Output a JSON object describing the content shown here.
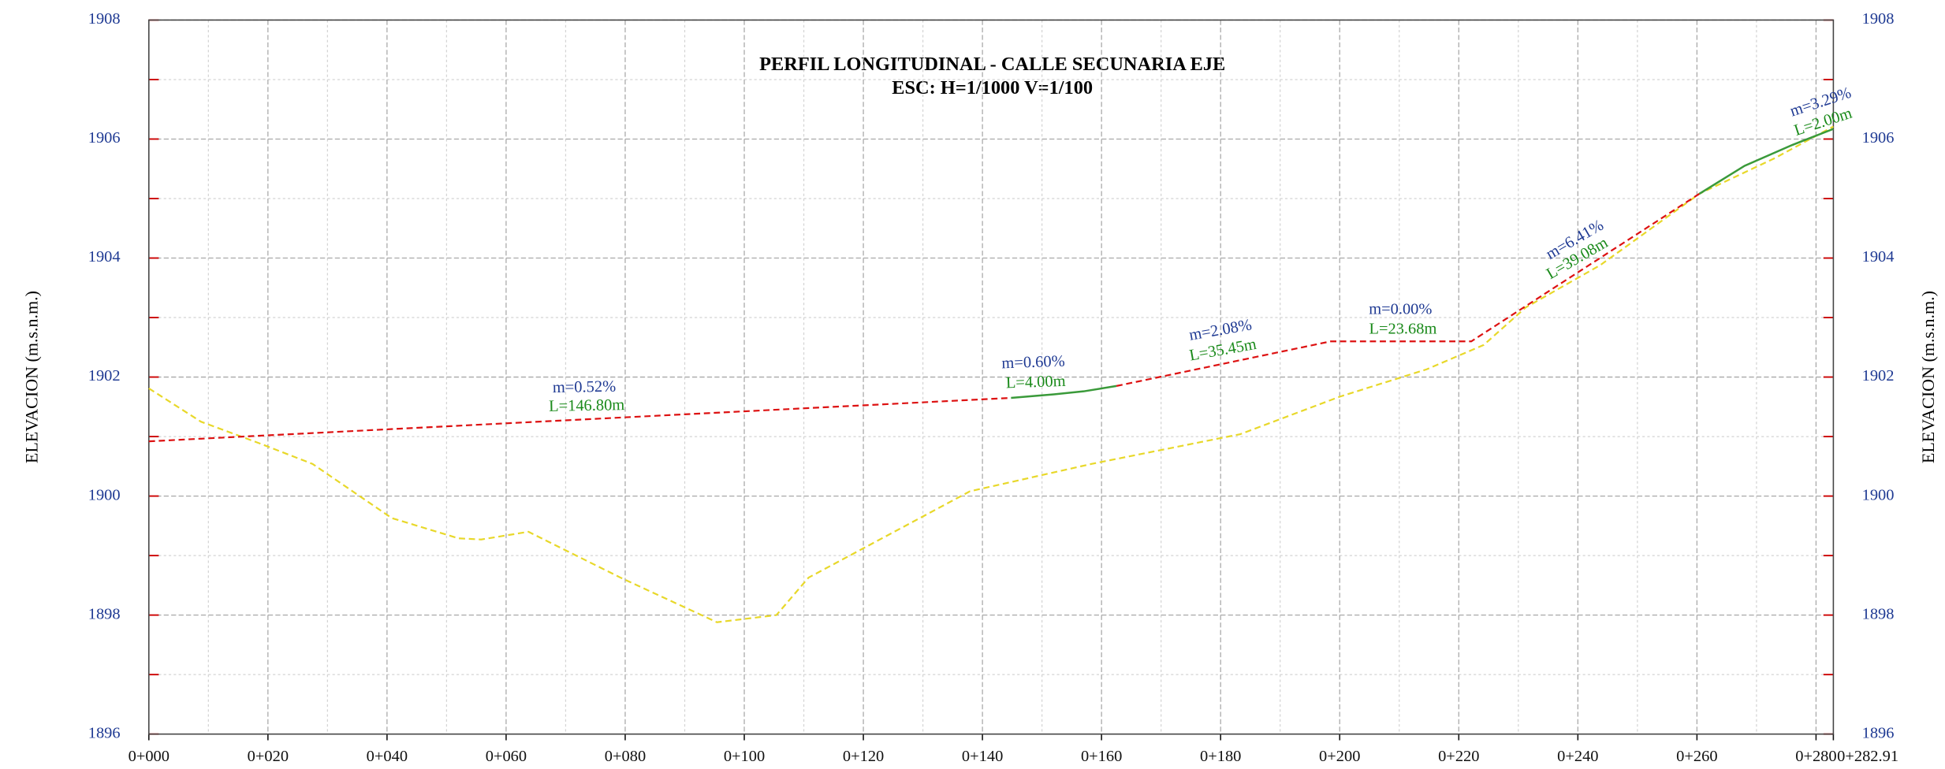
{
  "chart_data": {
    "type": "line",
    "title": "PERFIL LONGITUDINAL - CALLE SECUNARIA EJE",
    "subtitle": "ESC: H=1/1000 V=1/100",
    "y_label": "ELEVACION (m.s.n.m.)",
    "xlim": [
      0,
      282.91
    ],
    "ylim": [
      1896,
      1908
    ],
    "xticks": [
      {
        "value": 0,
        "label": "0+000"
      },
      {
        "value": 20,
        "label": "0+020"
      },
      {
        "value": 40,
        "label": "0+040"
      },
      {
        "value": 60,
        "label": "0+060"
      },
      {
        "value": 80,
        "label": "0+080"
      },
      {
        "value": 100,
        "label": "0+100"
      },
      {
        "value": 120,
        "label": "0+120"
      },
      {
        "value": 140,
        "label": "0+140"
      },
      {
        "value": 160,
        "label": "0+160"
      },
      {
        "value": 180,
        "label": "0+180"
      },
      {
        "value": 200,
        "label": "0+200"
      },
      {
        "value": 220,
        "label": "0+220"
      },
      {
        "value": 240,
        "label": "0+240"
      },
      {
        "value": 260,
        "label": "0+260"
      },
      {
        "value": 280,
        "label": "0+280"
      },
      {
        "value": 282.91,
        "label": "0+282.91"
      }
    ],
    "yticks": [
      1896,
      1898,
      1900,
      1902,
      1904,
      1906,
      1908
    ],
    "xticks_minor": [
      10,
      30,
      50,
      70,
      90,
      110,
      130,
      150,
      170,
      190,
      210,
      230,
      250,
      270
    ],
    "yticks_minor": [
      1897,
      1899,
      1901,
      1903,
      1905,
      1907
    ],
    "grid": true,
    "series": [
      {
        "color": "#e8d82a",
        "dash": true,
        "x": [
          0,
          8.75,
          18.75,
          27.5,
          40.8,
          52,
          55.8,
          63.75,
          79.2,
          95.4,
          105.4,
          110.8,
          137.9,
          158.3,
          183.3,
          200,
          214.6,
          224.2,
          231.25,
          243.75,
          260.4,
          272.9,
          282.91
        ],
        "values": [
          1901.81,
          1901.25,
          1900.88,
          1900.54,
          1899.63,
          1899.29,
          1899.27,
          1899.4,
          1898.63,
          1897.88,
          1898.0,
          1898.63,
          1900.08,
          1900.54,
          1901.04,
          1901.67,
          1902.13,
          1902.54,
          1903.17,
          1903.88,
          1905.08,
          1905.67,
          1906.21
        ]
      },
      {
        "color": "#dd1111",
        "dash": true,
        "x": [
          0,
          144.8,
          null,
          162.5,
          198.5,
          222.1,
          260.4
        ],
        "values": [
          1900.92,
          1901.65,
          null,
          1901.85,
          1902.6,
          1902.6,
          1905.08
        ]
      },
      {
        "color": "#3a9a3a",
        "dash": false,
        "x": [
          144.8,
          152,
          157,
          162.5,
          null,
          260.4,
          268,
          276,
          282.91
        ],
        "values": [
          1901.65,
          1901.71,
          1901.76,
          1901.85,
          null,
          1905.08,
          1905.55,
          1905.9,
          1906.17
        ]
      }
    ],
    "annotations": [
      {
        "slope": "m=0.52%",
        "length": "L=146.80m"
      },
      {
        "slope": "m=0.60%",
        "length": "L=4.00m"
      },
      {
        "slope": "m=2.08%",
        "length": "L=35.45m"
      },
      {
        "slope": "m=0.00%",
        "length": "L=23.68m"
      },
      {
        "slope": "m=6.41%",
        "length": "L=39.08m"
      },
      {
        "slope": "m=3.29%",
        "length": "L=2.00m"
      }
    ]
  }
}
